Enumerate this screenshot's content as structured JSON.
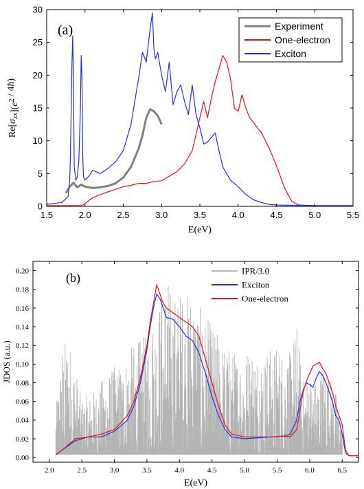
{
  "chart_data": [
    {
      "type": "line",
      "panel_label": "(a)",
      "xlabel": "E(eV)",
      "ylabel_parts": [
        "Re[",
        "σ",
        "xx",
        "](",
        "e",
        "2",
        " / 4",
        "ħ",
        ")"
      ],
      "xlim": [
        1.5,
        5.5
      ],
      "ylim": [
        0,
        30
      ],
      "xticks": [
        1.5,
        2.0,
        2.5,
        3.0,
        3.5,
        4.0,
        4.5,
        5.0,
        5.5
      ],
      "xtick_labels": [
        "1.5",
        "2.0",
        "2.5",
        "3.0",
        "3.5",
        "4.0",
        "4.5",
        "5.0",
        "5.5"
      ],
      "yticks": [
        0,
        5,
        10,
        15,
        20,
        25,
        30
      ],
      "ytick_labels": [
        "0",
        "5",
        "10",
        "15",
        "20",
        "25",
        "30"
      ],
      "legend_position": "top-right",
      "series": [
        {
          "name": "Experiment",
          "color": "#808080",
          "x": [
            1.75,
            1.8,
            1.85,
            1.9,
            1.95,
            2.0,
            2.1,
            2.2,
            2.3,
            2.4,
            2.5,
            2.6,
            2.7,
            2.75,
            2.8,
            2.85,
            2.9,
            2.95,
            3.0
          ],
          "y": [
            2.0,
            3.0,
            3.6,
            2.9,
            3.3,
            3.0,
            2.8,
            2.9,
            3.1,
            3.5,
            4.4,
            6.0,
            8.8,
            10.8,
            13.5,
            14.8,
            14.5,
            13.8,
            12.5
          ]
        },
        {
          "name": "One-electron",
          "color": "#e8101a",
          "x": [
            1.5,
            1.95,
            2.0,
            2.05,
            2.1,
            2.2,
            2.3,
            2.4,
            2.5,
            2.6,
            2.7,
            2.8,
            2.9,
            3.0,
            3.1,
            3.2,
            3.3,
            3.4,
            3.5,
            3.55,
            3.6,
            3.65,
            3.7,
            3.75,
            3.8,
            3.85,
            3.9,
            3.95,
            4.0,
            4.05,
            4.1,
            4.15,
            4.2,
            4.25,
            4.3,
            4.4,
            4.5,
            4.6,
            4.65,
            4.7,
            4.75,
            4.8,
            5.0,
            5.5
          ],
          "y": [
            0.1,
            0.1,
            0.4,
            0.9,
            1.3,
            1.8,
            2.2,
            2.6,
            3.0,
            3.2,
            3.5,
            3.5,
            3.8,
            3.9,
            4.6,
            5.3,
            6.5,
            8.5,
            13.5,
            16.0,
            13.5,
            16.5,
            19.0,
            21.0,
            23.0,
            22.0,
            19.5,
            15.0,
            14.5,
            17.0,
            15.0,
            13.5,
            12.8,
            12.0,
            11.3,
            9.0,
            6.2,
            3.0,
            1.8,
            0.8,
            0.4,
            0.2,
            0.1,
            0.1
          ]
        },
        {
          "name": "Exciton",
          "color": "#1f2fe6",
          "x": [
            1.5,
            1.7,
            1.78,
            1.8,
            1.81,
            1.82,
            1.83,
            1.84,
            1.85,
            1.86,
            1.88,
            1.9,
            1.92,
            1.94,
            1.95,
            1.96,
            1.97,
            1.98,
            2.0,
            2.05,
            2.1,
            2.2,
            2.3,
            2.4,
            2.5,
            2.55,
            2.6,
            2.65,
            2.7,
            2.75,
            2.8,
            2.85,
            2.88,
            2.9,
            2.92,
            2.95,
            3.0,
            3.05,
            3.1,
            3.15,
            3.2,
            3.25,
            3.3,
            3.35,
            3.4,
            3.45,
            3.5,
            3.55,
            3.6,
            3.65,
            3.7,
            3.75,
            3.8,
            3.85,
            3.9,
            4.0,
            4.1,
            4.2,
            4.3,
            4.4,
            4.5,
            5.0,
            5.5
          ],
          "y": [
            0.3,
            0.6,
            1.5,
            4.0,
            8.0,
            15.0,
            22.0,
            26.0,
            18.0,
            6.0,
            4.0,
            4.5,
            7.0,
            15.0,
            23.0,
            20.0,
            8.0,
            4.5,
            4.0,
            4.6,
            5.5,
            5.0,
            5.8,
            6.8,
            8.5,
            10.5,
            12.5,
            16.0,
            19.5,
            23.5,
            22.0,
            27.0,
            29.5,
            24.0,
            22.5,
            23.5,
            20.0,
            17.5,
            22.0,
            15.5,
            17.5,
            18.5,
            16.0,
            14.0,
            18.5,
            14.0,
            12.0,
            9.5,
            9.8,
            10.5,
            11.2,
            8.5,
            6.0,
            5.0,
            4.0,
            3.0,
            1.8,
            1.0,
            0.6,
            0.3,
            0.2,
            0.1,
            0.1
          ]
        }
      ]
    },
    {
      "type": "line",
      "panel_label": "(b)",
      "xlabel": "E(eV)",
      "ylabel": "JDOS (a.u.)",
      "xlim": [
        1.75,
        6.75
      ],
      "ylim": [
        -0.005,
        0.21
      ],
      "xticks": [
        2.0,
        2.5,
        3.0,
        3.5,
        4.0,
        4.5,
        5.0,
        5.5,
        6.0,
        6.5
      ],
      "xtick_labels": [
        "2.0",
        "2.5",
        "3.0",
        "3.5",
        "4.0",
        "4.5",
        "5.0",
        "5.5",
        "6.0",
        "6.5"
      ],
      "yticks": [
        0.0,
        0.02,
        0.04,
        0.06,
        0.08,
        0.1,
        0.12,
        0.14,
        0.16,
        0.18,
        0.2
      ],
      "ytick_labels": [
        "0.00",
        "0.02",
        "0.04",
        "0.06",
        "0.08",
        "0.10",
        "0.12",
        "0.14",
        "0.16",
        "0.18",
        "0.20"
      ],
      "legend_position": "top-right",
      "series": [
        {
          "name": "IPR/3.0",
          "color": "#b4b4b4",
          "x": [
            2.1,
            2.2,
            2.3,
            2.5,
            2.7,
            2.9,
            3.1,
            3.3,
            3.5,
            3.7,
            3.8,
            3.9,
            4.0,
            4.1,
            4.2,
            4.3,
            4.4,
            4.5,
            4.7,
            4.9,
            5.1,
            5.3,
            5.5,
            5.7,
            5.8,
            5.9,
            6.0,
            6.1,
            6.2,
            6.3,
            6.4,
            6.5
          ],
          "y": [
            0.05,
            0.12,
            0.13,
            0.06,
            0.07,
            0.09,
            0.1,
            0.12,
            0.13,
            0.17,
            0.2,
            0.17,
            0.18,
            0.17,
            0.19,
            0.16,
            0.15,
            0.14,
            0.12,
            0.11,
            0.12,
            0.11,
            0.12,
            0.11,
            0.145,
            0.08,
            0.09,
            0.08,
            0.1,
            0.09,
            0.07,
            0.03
          ]
        },
        {
          "name": "Exciton",
          "color": "#1f2fe6",
          "x": [
            2.1,
            2.2,
            2.4,
            2.6,
            2.8,
            3.0,
            3.2,
            3.3,
            3.4,
            3.5,
            3.55,
            3.6,
            3.65,
            3.7,
            3.75,
            3.8,
            3.9,
            4.0,
            4.1,
            4.2,
            4.3,
            4.4,
            4.5,
            4.6,
            4.7,
            4.8,
            5.0,
            5.2,
            5.4,
            5.6,
            5.7,
            5.8,
            5.85,
            5.9,
            5.95,
            6.0,
            6.05,
            6.1,
            6.15,
            6.2,
            6.25,
            6.3,
            6.35,
            6.4,
            6.45,
            6.5,
            6.55,
            6.6,
            6.75
          ],
          "y": [
            0.003,
            0.008,
            0.018,
            0.022,
            0.022,
            0.028,
            0.04,
            0.055,
            0.08,
            0.115,
            0.14,
            0.16,
            0.175,
            0.17,
            0.16,
            0.15,
            0.148,
            0.14,
            0.13,
            0.125,
            0.112,
            0.09,
            0.065,
            0.045,
            0.03,
            0.022,
            0.02,
            0.021,
            0.022,
            0.023,
            0.025,
            0.04,
            0.06,
            0.072,
            0.08,
            0.078,
            0.075,
            0.085,
            0.092,
            0.088,
            0.08,
            0.07,
            0.06,
            0.045,
            0.04,
            0.025,
            0.005,
            0.002,
            0.002
          ]
        },
        {
          "name": "One-electron",
          "color": "#e8101a",
          "x": [
            2.1,
            2.2,
            2.4,
            2.6,
            2.8,
            3.0,
            3.2,
            3.3,
            3.4,
            3.5,
            3.55,
            3.6,
            3.65,
            3.7,
            3.75,
            3.8,
            3.9,
            4.0,
            4.1,
            4.2,
            4.3,
            4.4,
            4.5,
            4.6,
            4.7,
            4.8,
            5.0,
            5.2,
            5.4,
            5.6,
            5.7,
            5.8,
            5.85,
            5.9,
            5.95,
            6.0,
            6.05,
            6.1,
            6.15,
            6.2,
            6.25,
            6.3,
            6.35,
            6.4,
            6.45,
            6.5,
            6.55,
            6.6,
            6.75
          ],
          "y": [
            0.003,
            0.008,
            0.02,
            0.022,
            0.025,
            0.03,
            0.045,
            0.06,
            0.085,
            0.12,
            0.145,
            0.165,
            0.185,
            0.175,
            0.165,
            0.16,
            0.155,
            0.15,
            0.145,
            0.14,
            0.13,
            0.105,
            0.08,
            0.055,
            0.035,
            0.025,
            0.022,
            0.022,
            0.022,
            0.023,
            0.022,
            0.03,
            0.05,
            0.07,
            0.082,
            0.09,
            0.098,
            0.1,
            0.102,
            0.095,
            0.09,
            0.08,
            0.07,
            0.055,
            0.045,
            0.035,
            0.008,
            0.002,
            0.002
          ]
        }
      ]
    }
  ]
}
